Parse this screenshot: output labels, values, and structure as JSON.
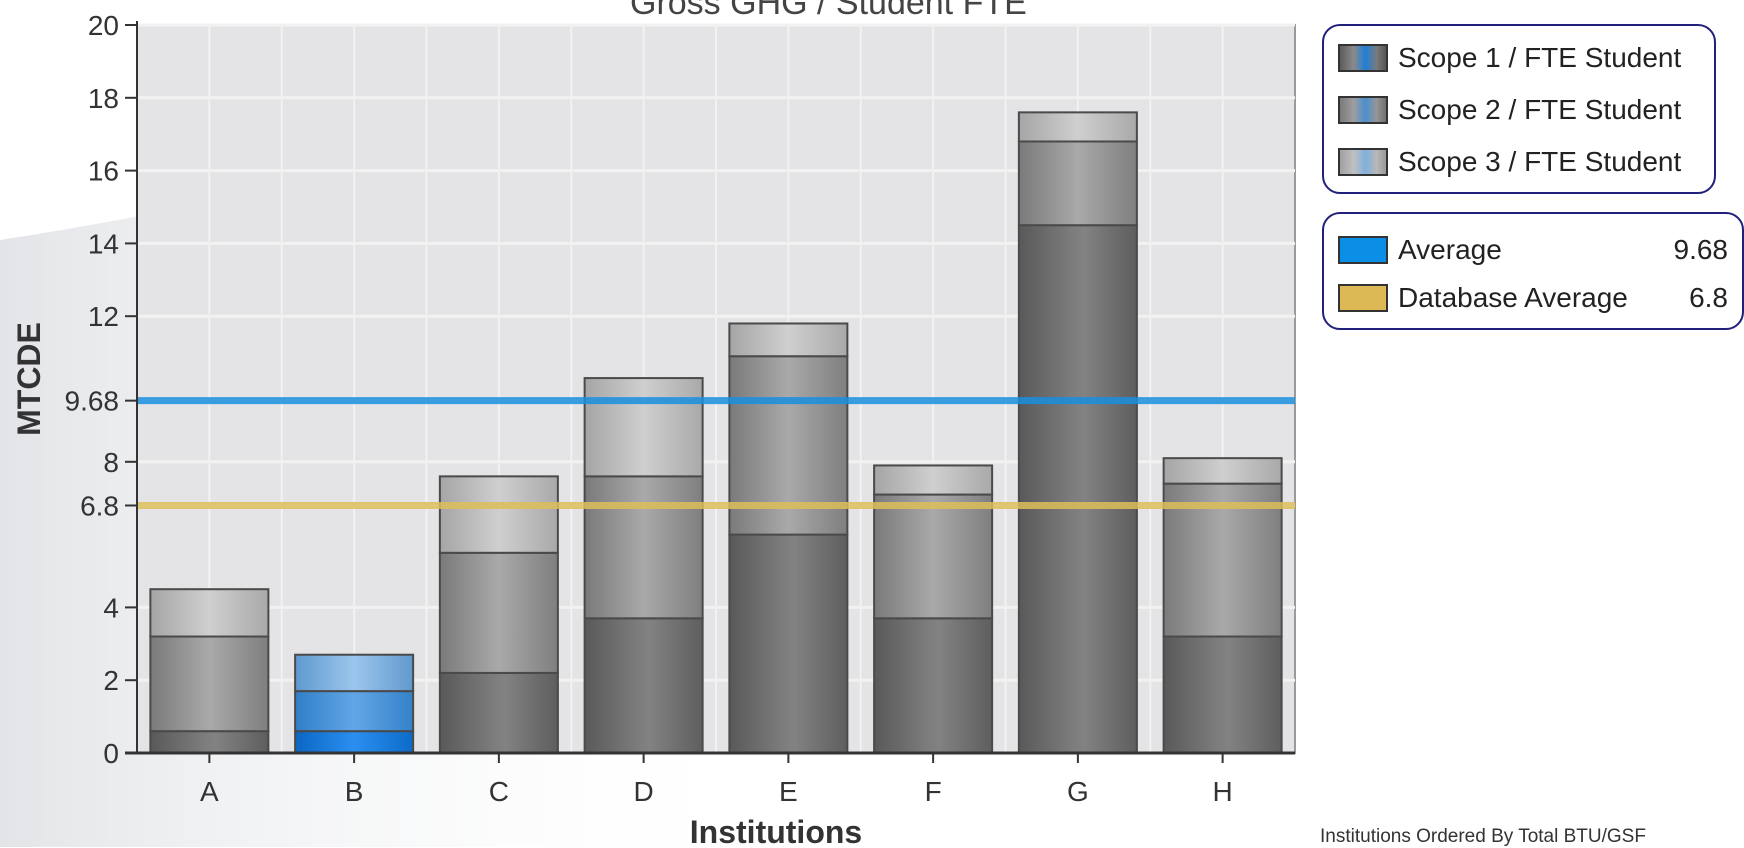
{
  "chart_data": {
    "type": "bar",
    "stacked": true,
    "title": "Gross GHG / Student FTE",
    "xlabel": "Institutions",
    "ylabel": "MTCDE",
    "ylim": [
      0,
      20
    ],
    "yticks": [
      0,
      2,
      4,
      6.8,
      8,
      9.68,
      12,
      14,
      16,
      18,
      20
    ],
    "categories": [
      "A",
      "B",
      "C",
      "D",
      "E",
      "F",
      "G",
      "H"
    ],
    "highlight_category": "B",
    "series": [
      {
        "name": "Scope 1 / FTE Student",
        "values": [
          0.6,
          0.6,
          2.2,
          3.7,
          6.0,
          3.7,
          14.5,
          3.2
        ]
      },
      {
        "name": "Scope 2 / FTE Student",
        "values": [
          2.6,
          1.1,
          3.3,
          3.9,
          4.9,
          3.4,
          2.3,
          4.2
        ]
      },
      {
        "name": "Scope 3 / FTE Student",
        "values": [
          1.3,
          1.0,
          2.1,
          2.7,
          0.9,
          0.8,
          0.8,
          0.7
        ]
      }
    ],
    "reference_lines": [
      {
        "name": "Average",
        "value": 9.68,
        "color": "#1a8fe0"
      },
      {
        "name": "Database Average",
        "value": 6.8,
        "color": "#dcbf5a"
      }
    ],
    "grid": true,
    "legend_position": "right"
  },
  "legend": {
    "scopes": [
      {
        "label": "Scope 1 / FTE Student"
      },
      {
        "label": "Scope 2 / FTE Student"
      },
      {
        "label": "Scope 3 / FTE Student"
      }
    ],
    "averages": [
      {
        "label": "Average",
        "value": "9.68",
        "color": "#0a8ee6"
      },
      {
        "label": "Database Average",
        "value": "6.8",
        "color": "#dcb955"
      }
    ]
  },
  "footnote": "Institutions Ordered By Total BTU/GSF",
  "colors": {
    "plot_bg": "#e4e4e6",
    "grid": "#f2f2f2",
    "highlight": "#1f7fd8",
    "bar_dark": "#6a6a6a",
    "bar_mid": "#8f8f8f",
    "bar_light": "#b4b4b4"
  }
}
